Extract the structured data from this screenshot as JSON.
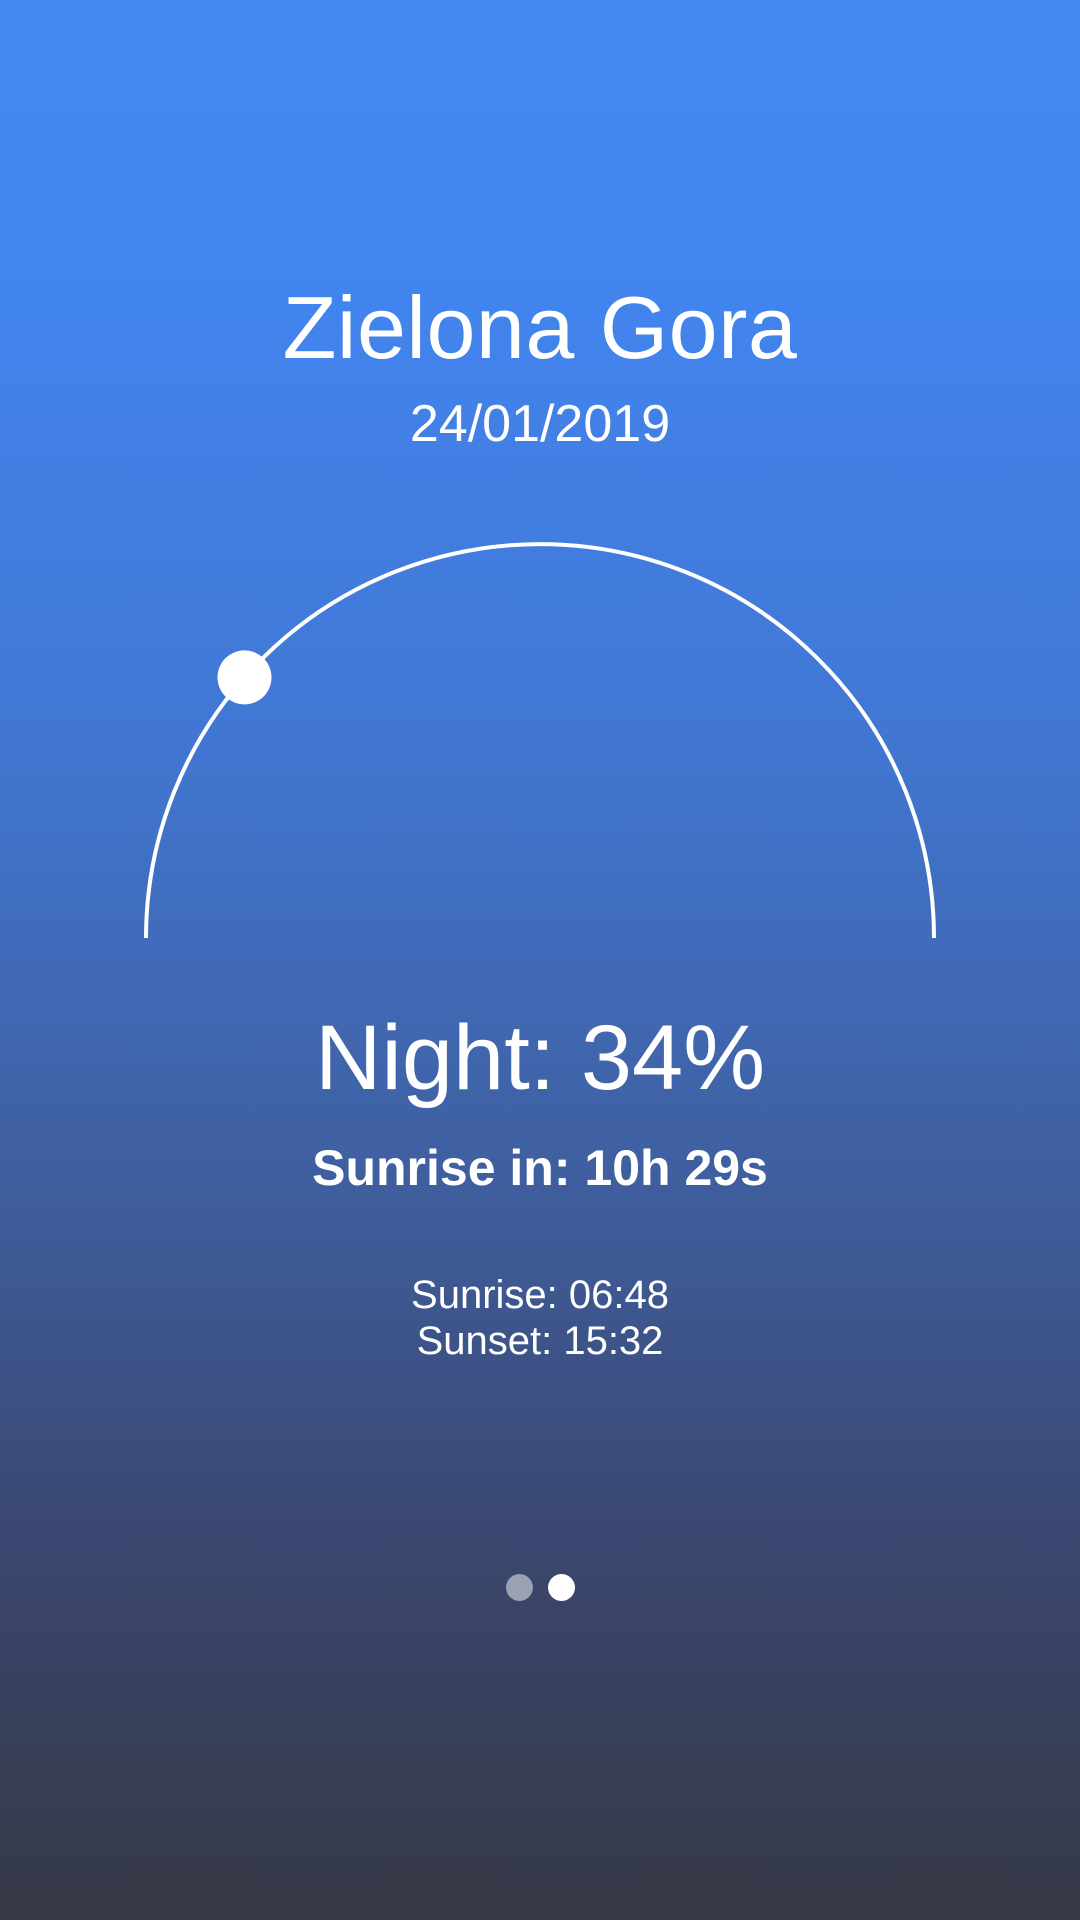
{
  "location": {
    "city": "Zielona Gora",
    "date": "24/01/2019"
  },
  "sun_arc": {
    "position_fraction": 0.23,
    "color": "#ffffff"
  },
  "status": {
    "phase_text": "Night: 34%",
    "countdown_text": "Sunrise in: 10h 29s"
  },
  "sun_times": {
    "sunrise": "Sunrise: 06:48",
    "sunset": "Sunset: 15:32"
  },
  "pager": {
    "count": 2,
    "active_index": 1
  },
  "colors": {
    "gradient_top": "#4388f3",
    "gradient_bottom": "#363945",
    "inactive_dot": "#9aa1b1"
  }
}
